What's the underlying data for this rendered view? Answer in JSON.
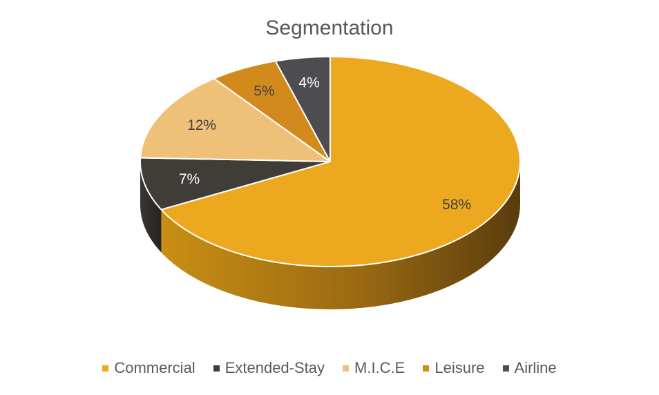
{
  "chart_data": {
    "type": "pie",
    "title": "Segmentation",
    "legend_position": "bottom",
    "style": "3d",
    "series": [
      {
        "name": "",
        "values": [
          {
            "category": "Commercial",
            "value": 58,
            "label": "58%",
            "color": "#ECA81E"
          },
          {
            "category": "Extended-Stay",
            "value": 7,
            "label": "7%",
            "color": "#403C38"
          },
          {
            "category": "M.I.C.E",
            "value": 12,
            "label": "12%",
            "color": "#EFC077"
          },
          {
            "category": "Leisure",
            "value": 5,
            "label": "5%",
            "color": "#D28A1D"
          },
          {
            "category": "Airline",
            "value": 4,
            "label": "4%",
            "color": "#4D4C50"
          }
        ]
      }
    ]
  }
}
